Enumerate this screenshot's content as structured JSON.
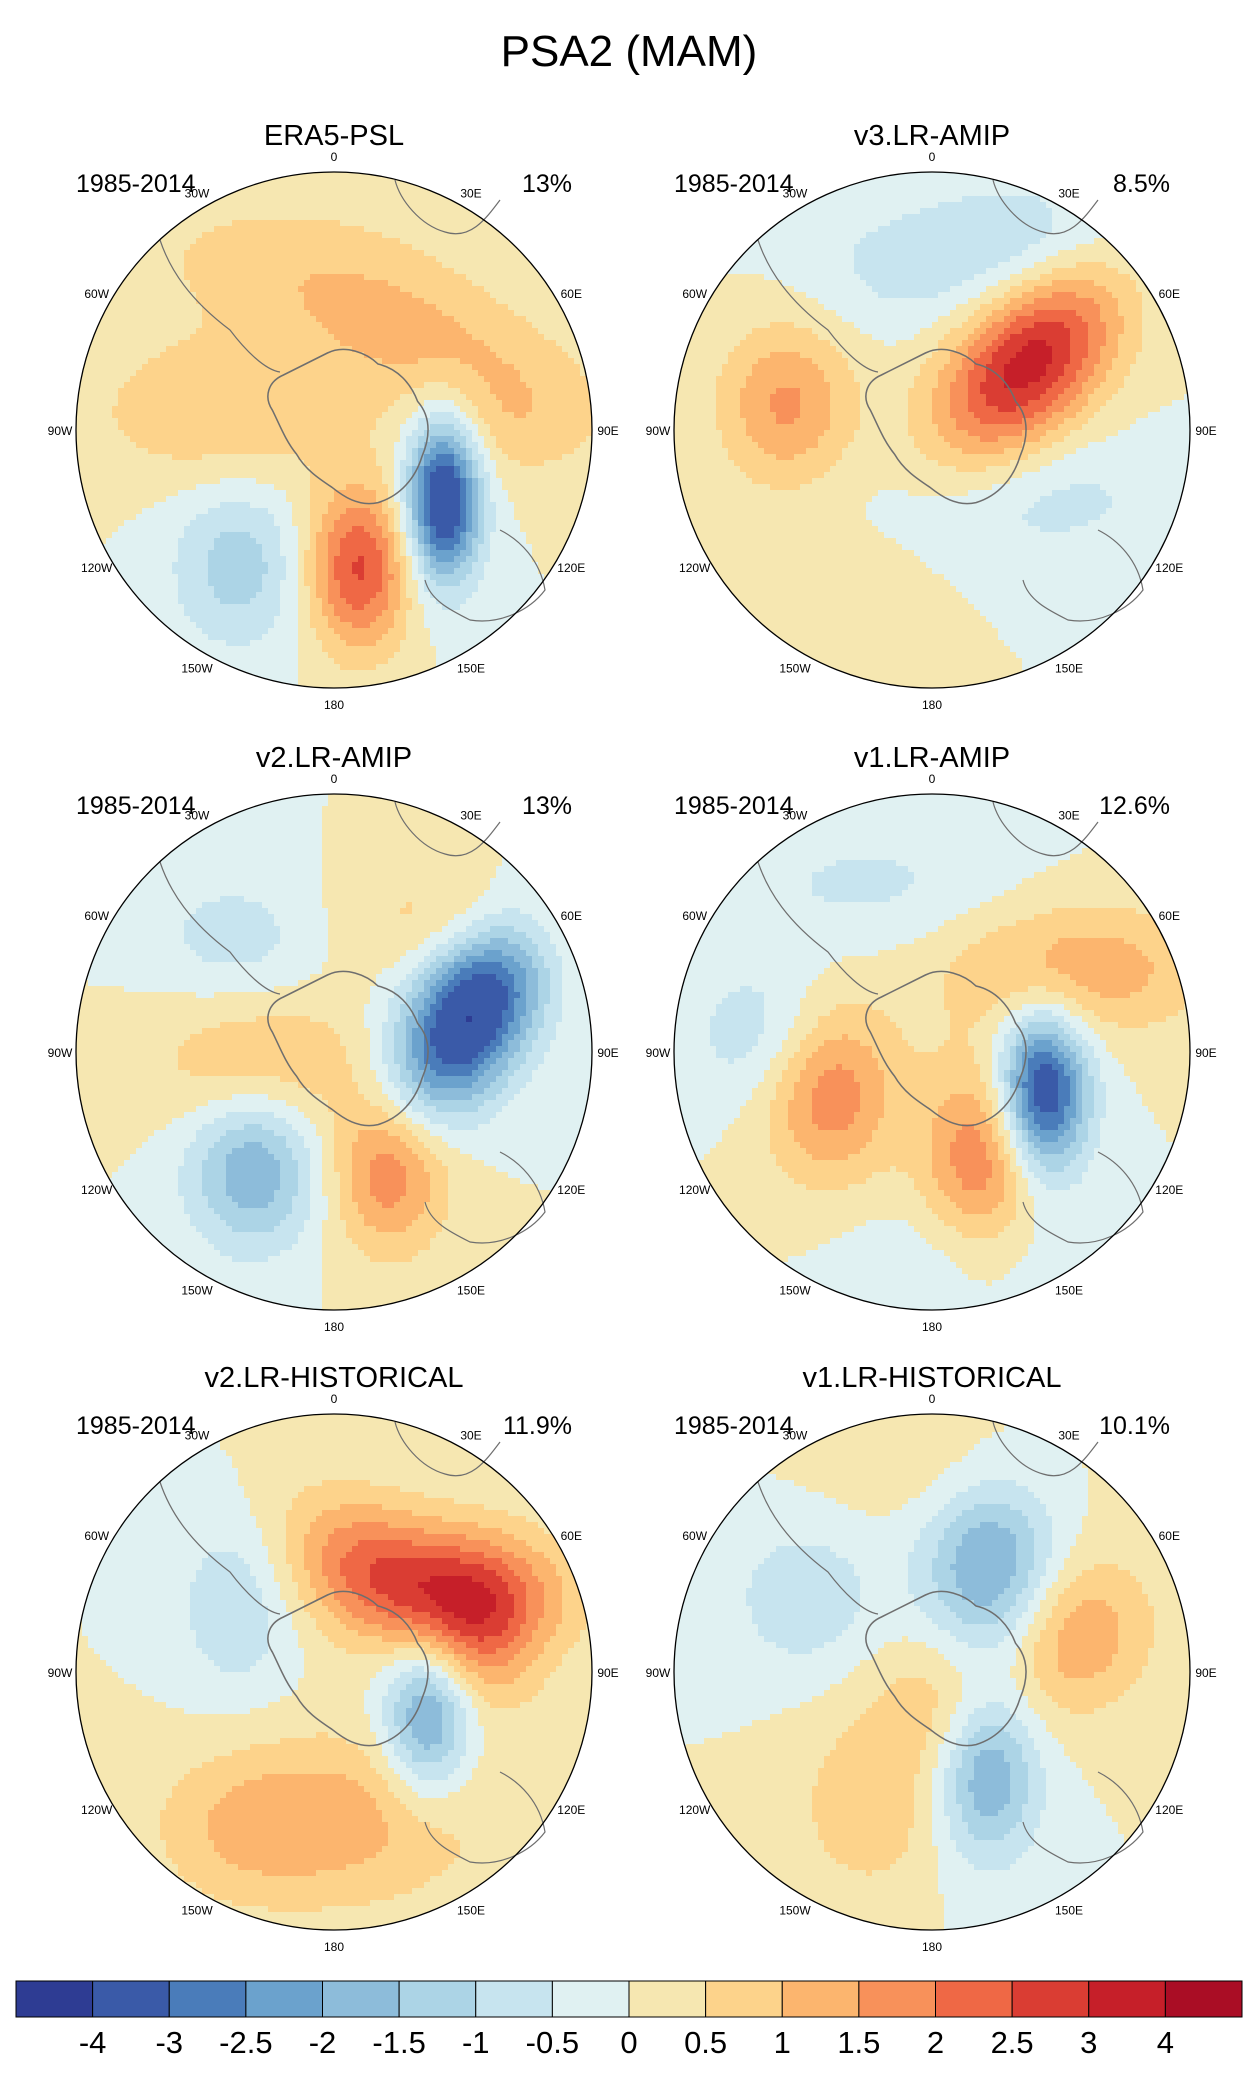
{
  "figure": {
    "title": "PSA2 (MAM)"
  },
  "panels": [
    {
      "title": "ERA5-PSL",
      "period": "1985-2014",
      "variance": "13%",
      "blobs": [
        {
          "lon": 122,
          "lat": -55,
          "amp": -4.0,
          "sa": 5,
          "sb": 11,
          "rot": 0
        },
        {
          "lon": 170,
          "lat": -52,
          "amp": 2.6,
          "sa": 7,
          "sb": 11,
          "rot": 0
        },
        {
          "lon": -145,
          "lat": -45,
          "amp": -1.3,
          "sa": 9,
          "sb": 11,
          "rot": 0
        },
        {
          "lon": 45,
          "lat": -55,
          "amp": 1.1,
          "sa": 22,
          "sb": 9,
          "rot": 20
        },
        {
          "lon": 90,
          "lat": -42,
          "amp": 0.6,
          "sa": 12,
          "sb": 8,
          "rot": 0
        },
        {
          "lon": -80,
          "lat": -60,
          "amp": 1.0,
          "sa": 18,
          "sb": 10,
          "rot": 0
        },
        {
          "lon": -20,
          "lat": -40,
          "amp": 0.5,
          "sa": 25,
          "sb": 10,
          "rot": 0
        }
      ]
    },
    {
      "title": "v3.LR-AMIP",
      "period": "1985-2014",
      "variance": "8.5%",
      "blobs": [
        {
          "lon": 55,
          "lat": -58,
          "amp": 3.3,
          "sa": 9,
          "sb": 16,
          "rot": 40
        },
        {
          "lon": -80,
          "lat": -50,
          "amp": 1.6,
          "sa": 9,
          "sb": 11,
          "rot": 0
        },
        {
          "lon": 125,
          "lat": -58,
          "amp": -0.7,
          "sa": 20,
          "sb": 9,
          "rot": 0
        },
        {
          "lon": 30,
          "lat": -32,
          "amp": -0.9,
          "sa": 15,
          "sb": 9,
          "rot": 0
        },
        {
          "lon": -10,
          "lat": -45,
          "amp": -0.6,
          "sa": 15,
          "sb": 9,
          "rot": 0
        },
        {
          "lon": -150,
          "lat": -38,
          "amp": 0.4,
          "sa": 12,
          "sb": 8,
          "rot": 0
        }
      ]
    },
    {
      "title": "v2.LR-AMIP",
      "period": "1985-2014",
      "variance": "13%",
      "blobs": [
        {
          "lon": 75,
          "lat": -52,
          "amp": -4.1,
          "sa": 8,
          "sb": 15,
          "rot": 30
        },
        {
          "lon": 155,
          "lat": -55,
          "amp": 2.0,
          "sa": 8,
          "sb": 11,
          "rot": 0
        },
        {
          "lon": -145,
          "lat": -52,
          "amp": -2.0,
          "sa": 9,
          "sb": 11,
          "rot": 0
        },
        {
          "lon": -100,
          "lat": -70,
          "amp": 1.1,
          "sa": 15,
          "sb": 10,
          "rot": 0
        },
        {
          "lon": 50,
          "lat": -35,
          "amp": 0.9,
          "sa": 20,
          "sb": 8,
          "rot": 0
        },
        {
          "lon": -40,
          "lat": -50,
          "amp": -0.8,
          "sa": 12,
          "sb": 9,
          "rot": 0
        }
      ]
    },
    {
      "title": "v1.LR-AMIP",
      "period": "1985-2014",
      "variance": "12.6%",
      "blobs": [
        {
          "lon": 110,
          "lat": -58,
          "amp": -3.8,
          "sa": 6,
          "sb": 11,
          "rot": 0
        },
        {
          "lon": 155,
          "lat": -58,
          "amp": 2.0,
          "sa": 8,
          "sb": 13,
          "rot": 0
        },
        {
          "lon": -110,
          "lat": -60,
          "amp": 2.0,
          "sa": 9,
          "sb": 12,
          "rot": 0
        },
        {
          "lon": -85,
          "lat": -45,
          "amp": -1.0,
          "sa": 10,
          "sb": 10,
          "rot": 0
        },
        {
          "lon": 60,
          "lat": -45,
          "amp": 1.4,
          "sa": 18,
          "sb": 9,
          "rot": 0
        },
        {
          "lon": -20,
          "lat": -42,
          "amp": -0.6,
          "sa": 20,
          "sb": 9,
          "rot": 0
        },
        {
          "lon": 170,
          "lat": -35,
          "amp": -0.5,
          "sa": 15,
          "sb": 8,
          "rot": 0
        }
      ]
    },
    {
      "title": "v2.LR-HISTORICAL",
      "period": "1985-2014",
      "variance": "11.9%",
      "blobs": [
        {
          "lon": 115,
          "lat": -62,
          "amp": -2.4,
          "sa": 6,
          "sb": 11,
          "rot": 0
        },
        {
          "lon": 70,
          "lat": -48,
          "amp": 1.9,
          "sa": 9,
          "sb": 11,
          "rot": 0
        },
        {
          "lon": 25,
          "lat": -60,
          "amp": 2.0,
          "sa": 14,
          "sb": 9,
          "rot": 30
        },
        {
          "lon": 175,
          "lat": -50,
          "amp": 1.2,
          "sa": 20,
          "sb": 12,
          "rot": 0
        },
        {
          "lon": -55,
          "lat": -58,
          "amp": -1.0,
          "sa": 8,
          "sb": 12,
          "rot": 0
        },
        {
          "lon": -150,
          "lat": -40,
          "amp": 0.6,
          "sa": 12,
          "sb": 10,
          "rot": 0
        },
        {
          "lon": 60,
          "lat": -45,
          "amp": 0.9,
          "sa": 20,
          "sb": 8,
          "rot": 0
        }
      ]
    },
    {
      "title": "v1.LR-HISTORICAL",
      "period": "1985-2014",
      "variance": "10.1%",
      "blobs": [
        {
          "lon": 150,
          "lat": -60,
          "amp": -2.2,
          "sa": 7,
          "sb": 12,
          "rot": 0
        },
        {
          "lon": 30,
          "lat": -58,
          "amp": -2.2,
          "sa": 9,
          "sb": 12,
          "rot": 0
        },
        {
          "lon": 75,
          "lat": -50,
          "amp": 1.5,
          "sa": 10,
          "sb": 11,
          "rot": 30
        },
        {
          "lon": -60,
          "lat": -50,
          "amp": -0.9,
          "sa": 10,
          "sb": 10,
          "rot": 0
        },
        {
          "lon": -155,
          "lat": -50,
          "amp": 0.9,
          "sa": 10,
          "sb": 12,
          "rot": 0
        },
        {
          "lon": 150,
          "lat": -80,
          "amp": 1.0,
          "sa": 10,
          "sb": 10,
          "rot": 0
        },
        {
          "lon": 0,
          "lat": -35,
          "amp": 0.4,
          "sa": 15,
          "sb": 8,
          "rot": 0
        }
      ]
    }
  ],
  "map": {
    "projection": "south polar stereographic",
    "lat_min": -90,
    "lat_max": -20,
    "lon_ticks": [
      "0",
      "30E",
      "60E",
      "90E",
      "120E",
      "150E",
      "180",
      "150W",
      "120W",
      "90W",
      "60W",
      "30W"
    ],
    "coastline_color": "#6e6e6e"
  },
  "colorbar": {
    "tick_labels": [
      "-4",
      "-3",
      "-2.5",
      "-2",
      "-1.5",
      "-1",
      "-0.5",
      "0",
      "0.5",
      "1",
      "1.5",
      "2",
      "2.5",
      "3",
      "4"
    ],
    "levels": [
      -4,
      -3,
      -2.5,
      -2,
      -1.5,
      -1,
      -0.5,
      0,
      0.5,
      1,
      1.5,
      2,
      2.5,
      3,
      4
    ],
    "colors": [
      "#2e3c93",
      "#3a5aa8",
      "#4a7cba",
      "#6ba2cd",
      "#8dbcda",
      "#acd4e6",
      "#c7e4ef",
      "#e0f1f2",
      "#f6e7b1",
      "#fdd38b",
      "#fcb56e",
      "#f8915a",
      "#ef6845",
      "#da3d33",
      "#c61f29",
      "#aa0d25"
    ]
  },
  "chart_data": {
    "type": "heatmap",
    "title": "PSA2 (MAM)",
    "panels": [
      "ERA5-PSL",
      "v3.LR-AMIP",
      "v2.LR-AMIP",
      "v1.LR-AMIP",
      "v2.LR-HISTORICAL",
      "v1.LR-HISTORICAL"
    ],
    "period": "1985-2014",
    "explained_variance": [
      "13%",
      "8.5%",
      "13%",
      "12.6%",
      "11.9%",
      "10.1%"
    ],
    "contour_levels": [
      -4,
      -3,
      -2.5,
      -2,
      -1.5,
      -1,
      -0.5,
      0,
      0.5,
      1,
      1.5,
      2,
      2.5,
      3,
      4
    ]
  }
}
